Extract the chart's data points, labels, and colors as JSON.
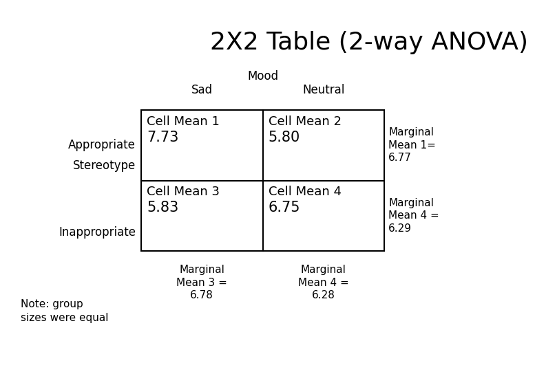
{
  "title": "2X2 Table (2-way ANOVA)",
  "mood_label": "Mood",
  "sad_label": "Sad",
  "neutral_label": "Neutral",
  "stereotype_label": "Stereotype",
  "appropriate_label": "Appropriate",
  "inappropriate_label": "Inappropriate",
  "cell1_label": "Cell Mean 1",
  "cell1_value": "7.73",
  "cell2_label": "Cell Mean 2",
  "cell2_value": "5.80",
  "cell3_label": "Cell Mean 3",
  "cell3_value": "5.83",
  "cell4_label": "Cell Mean 4",
  "cell4_value": "6.75",
  "marginal1_text": "Marginal\nMean 1=\n6.77",
  "marginal4_text": "Marginal\nMean 4 =\n6.29",
  "marginal3_text": "Marginal\nMean 3 =\n6.78",
  "marginal4b_text": "Marginal\nMean 4 =\n6.28",
  "note_text": "Note: group\nsizes were equal",
  "bg_color": "#ffffff",
  "text_color": "#000000",
  "title_fontsize": 26,
  "label_fontsize": 12,
  "cell_fontsize": 13,
  "cell_value_fontsize": 15
}
